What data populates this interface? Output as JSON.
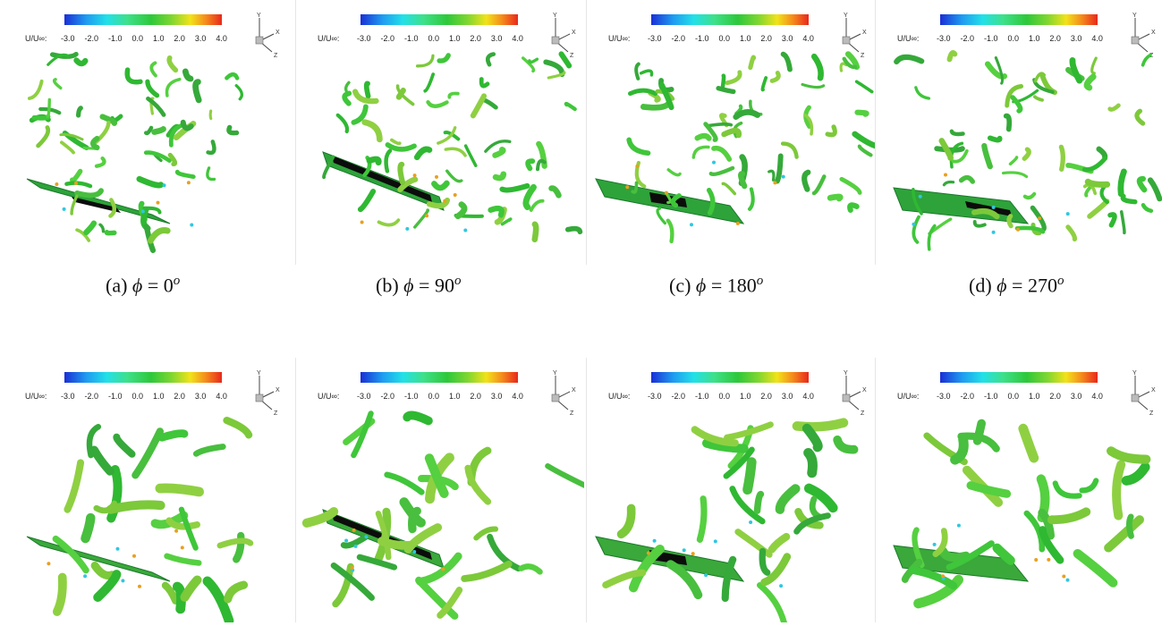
{
  "colorbar": {
    "label": "U/U∞:",
    "ticks": [
      "-3.0",
      "-2.0",
      "-1.0",
      "0.0",
      "1.0",
      "2.0",
      "3.0",
      "4.0"
    ],
    "colors": [
      "#1a2fd6",
      "#22e0e8",
      "#2ec83a",
      "#f2e21a",
      "#e8281c"
    ]
  },
  "axes": {
    "y": "Y",
    "x": "X",
    "z": "Z"
  },
  "captions": [
    {
      "prefix": "(a)",
      "symbol": "ϕ",
      "eq": "= 0",
      "sup": "o"
    },
    {
      "prefix": "(b)",
      "symbol": "ϕ",
      "eq": "= 90",
      "sup": "o"
    },
    {
      "prefix": "(c)",
      "symbol": "ϕ",
      "eq": "= 180",
      "sup": "o"
    },
    {
      "prefix": "(d)",
      "symbol": "ϕ",
      "eq": "= 270",
      "sup": "o"
    }
  ]
}
